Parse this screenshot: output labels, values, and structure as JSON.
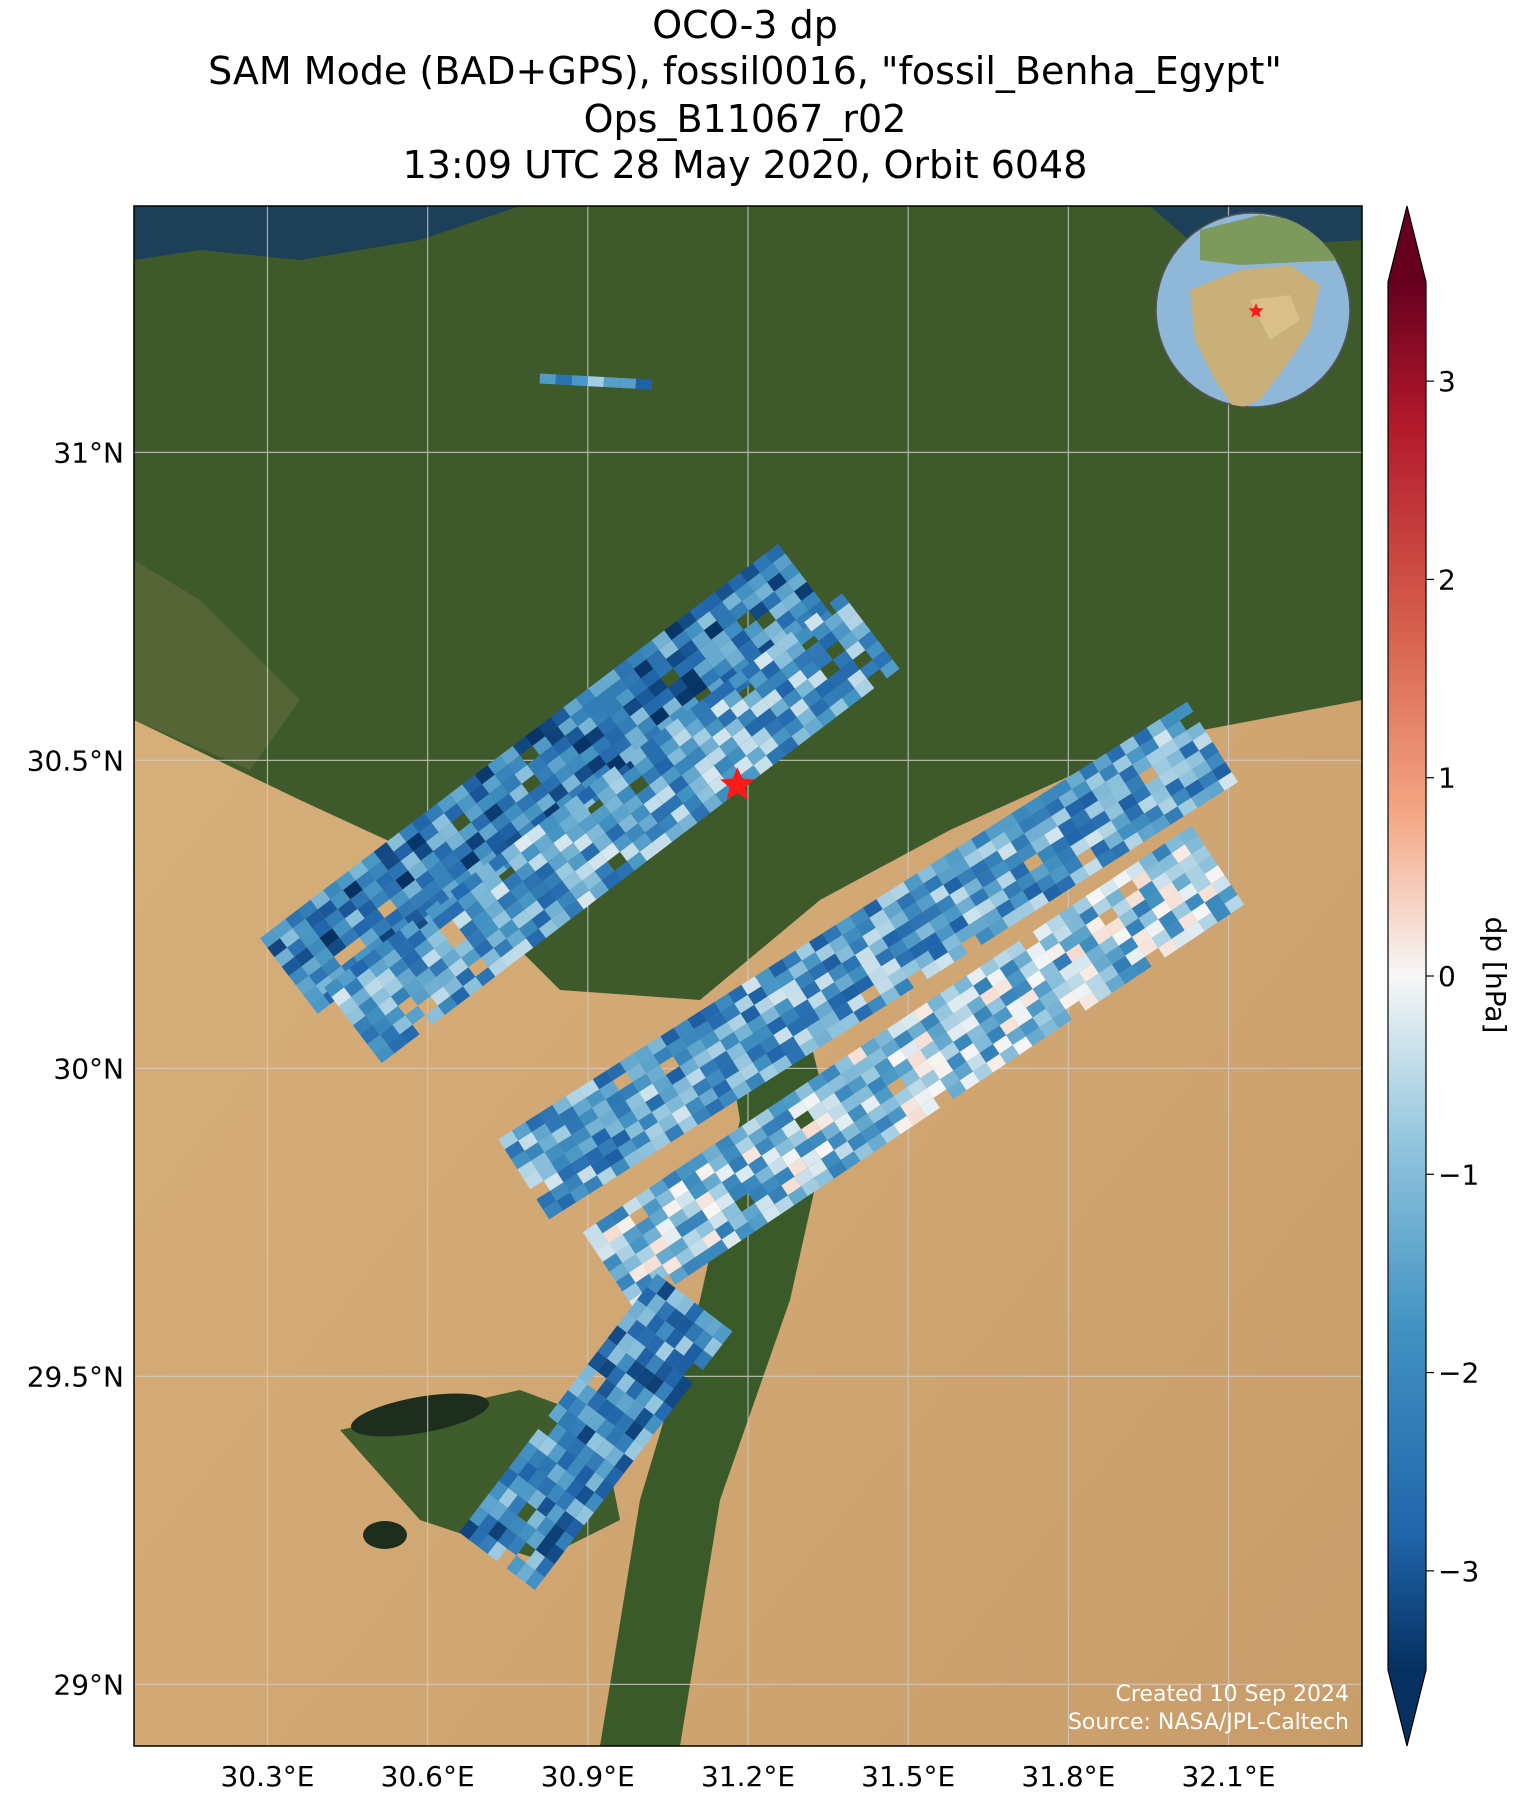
{
  "title": {
    "line1": "OCO-3 dp",
    "line2": "SAM Mode (BAD+GPS), fossil0016, \"fossil_Benha_Egypt\"",
    "line3": "Ops_B11067_r02",
    "line4": "13:09 UTC 28 May 2020, Orbit 6048"
  },
  "map": {
    "lon_range": [
      30.05,
      32.35
    ],
    "lat_range": [
      28.9,
      31.4
    ],
    "lon_ticks": [
      30.3,
      30.6,
      30.9,
      31.2,
      31.5,
      31.8,
      32.1
    ],
    "lat_ticks": [
      29.0,
      29.5,
      30.0,
      30.5,
      31.0
    ],
    "lon_labels": [
      "30.3°E",
      "30.6°E",
      "30.9°E",
      "31.2°E",
      "31.5°E",
      "31.8°E",
      "32.1°E"
    ],
    "lat_labels": [
      "29°N",
      "29.5°N",
      "30°N",
      "30.5°N",
      "31°N"
    ],
    "target": {
      "name": "fossil_Benha_Egypt",
      "lon": 31.18,
      "lat": 30.46
    },
    "credit_line1": "Created 10 Sep 2024",
    "credit_line2": "Source: NASA/JPL-Caltech"
  },
  "colorbar": {
    "label": "dp [hPa]",
    "range": [
      -3.5,
      3.5
    ],
    "ticks": [
      3,
      2,
      1,
      0,
      -1,
      -2,
      -3
    ],
    "tick_labels": [
      "3",
      "2",
      "1",
      "0",
      "−1",
      "−2",
      "−3"
    ],
    "colormap": "RdBu_r",
    "extend": "both"
  },
  "chart_data": {
    "type": "heatmap",
    "variable": "dp",
    "units": "hPa",
    "swaths": [
      {
        "lon_start": 30.81,
        "lat_start": 31.12,
        "lon_end": 31.02,
        "lat_end": 31.11,
        "mean_dp": -2.0
      },
      {
        "lon_start": 30.34,
        "lat_start": 30.15,
        "lon_end": 31.31,
        "lat_end": 30.79,
        "mean_dp": -2.2
      },
      {
        "lon_start": 30.46,
        "lat_start": 30.07,
        "lon_end": 31.43,
        "lat_end": 30.71,
        "mean_dp": -1.5
      },
      {
        "lon_start": 30.78,
        "lat_start": 29.82,
        "lon_end": 32.07,
        "lat_end": 30.53,
        "mean_dp": -1.6
      },
      {
        "lon_start": 30.94,
        "lat_start": 29.67,
        "lon_end": 32.08,
        "lat_end": 30.33,
        "mean_dp": -1.0
      },
      {
        "lon_start": 30.73,
        "lat_start": 29.2,
        "lon_end": 31.1,
        "lat_end": 29.62,
        "mean_dp": -2.0
      }
    ]
  }
}
